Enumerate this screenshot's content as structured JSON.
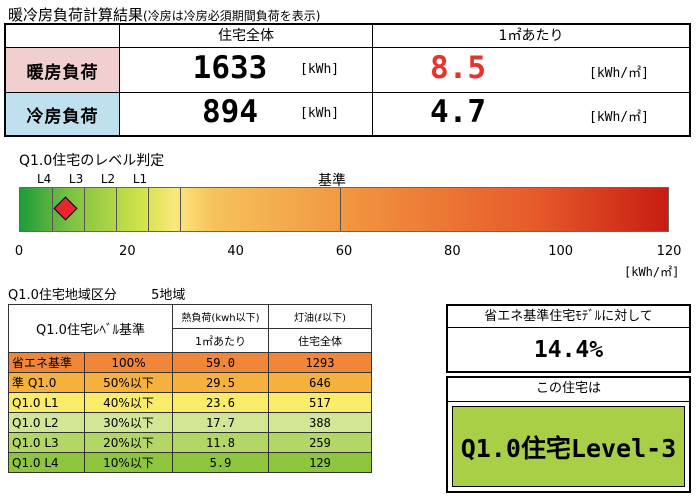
{
  "title": {
    "main": "暖冷房負荷計算結果",
    "sub": "(冷房は冷房必須期間負荷を表示)"
  },
  "result": {
    "header_total": "住宅全体",
    "header_per_m2": "1㎡あたり",
    "heating": {
      "label": "暖房負荷",
      "total": "1633",
      "total_unit": "[kWh]",
      "per_m2": "8.5",
      "per_m2_unit": "[kWh/㎡]"
    },
    "cooling": {
      "label": "冷房負荷",
      "total": "894",
      "total_unit": "[kWh]",
      "per_m2": "4.7",
      "per_m2_unit": "[kWh/㎡]"
    },
    "colors": {
      "heating_label_bg": "#f2cfcf",
      "cooling_label_bg": "#bfe0ee",
      "highlight_red": "#e8322c"
    }
  },
  "level_bar": {
    "title": "Q1.0住宅のレベル判定",
    "level_labels": [
      "L4",
      "L3",
      "L2",
      "L1"
    ],
    "standard_label": "基準",
    "axis_ticks": [
      "0",
      "20",
      "40",
      "60",
      "80",
      "100",
      "120"
    ],
    "axis_unit": "[kWh/㎡]",
    "axis_range": [
      0,
      120
    ],
    "level_boundaries": [
      5.9,
      11.8,
      17.7,
      23.6,
      29.5,
      59.0
    ],
    "marker_value": 8.5,
    "marker_icon": "diamond-marker-icon"
  },
  "region": {
    "title": "Q1.0住宅地域区分",
    "zone": "5地域",
    "header": {
      "col1": "Q1.0住宅ﾚﾍﾞﾙ基準",
      "col3_top": "熱負荷(kwh以下)",
      "col3_bottom": "1㎡あたり",
      "col4_top": "灯油(ℓ以下)",
      "col4_bottom": "住宅全体"
    },
    "rows": [
      {
        "name": "省エネ基準",
        "ratio": "100%",
        "per_m2": "59.0",
        "total": "1293",
        "color": "#f0863a"
      },
      {
        "name": "準 Q1.0",
        "ratio": "50%以下",
        "per_m2": "29.5",
        "total": "646",
        "color": "#f6b03c"
      },
      {
        "name": "Q1.0 L1",
        "ratio": "40%以下",
        "per_m2": "23.6",
        "total": "517",
        "color": "#f8ec68"
      },
      {
        "name": "Q1.0 L2",
        "ratio": "30%以下",
        "per_m2": "17.7",
        "total": "388",
        "color": "#d3e695"
      },
      {
        "name": "Q1.0 L3",
        "ratio": "20%以下",
        "per_m2": "11.8",
        "total": "259",
        "color": "#b2d766"
      },
      {
        "name": "Q1.0 L4",
        "ratio": "10%以下",
        "per_m2": "5.9",
        "total": "129",
        "color": "#8dc53c"
      }
    ]
  },
  "comparison": {
    "label": "省エネ基準住宅ﾓﾃﾞﾙに対して",
    "value": "14.4%"
  },
  "this_house": {
    "label": "この住宅は",
    "level": "Q1.0住宅Level-3",
    "color": "#a8cf45"
  }
}
